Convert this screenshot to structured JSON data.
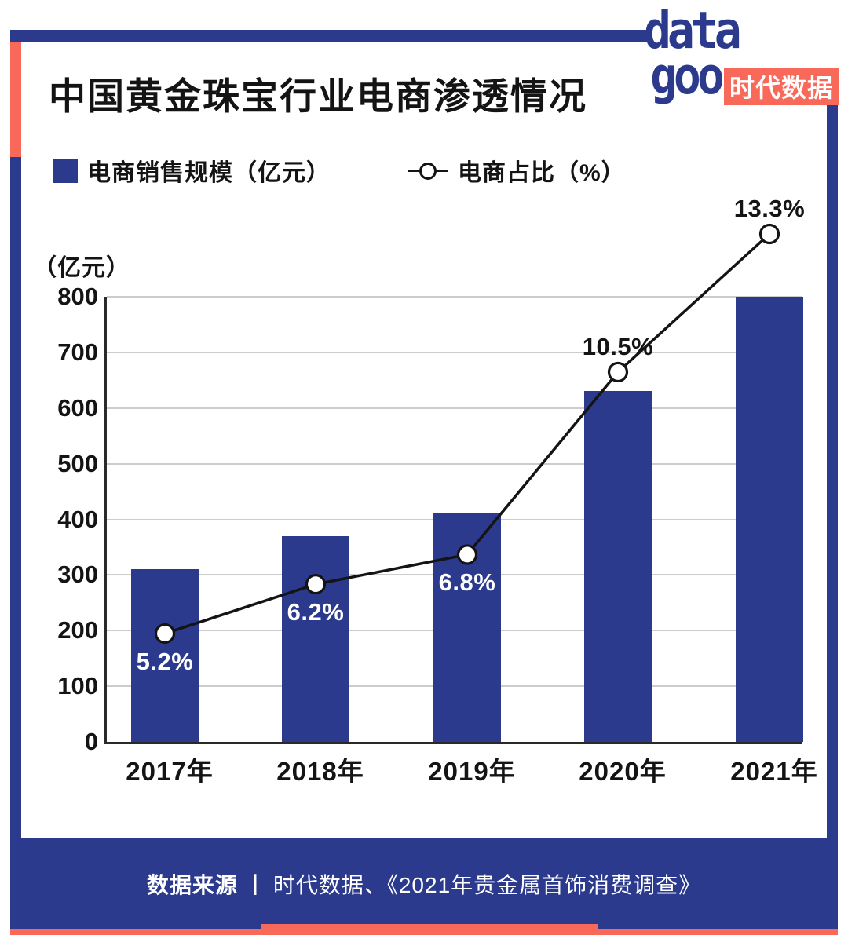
{
  "header": {
    "title": "中国黄金珠宝行业电商渗透情况"
  },
  "logo": {
    "word_top": "data",
    "word_bottom": "goo",
    "badge": "时代数据"
  },
  "legend": {
    "bar_label": "电商销售规模（亿元）",
    "line_label": "电商占比（%）"
  },
  "chart_data": {
    "type": "bar",
    "title": "中国黄金珠宝行业电商渗透情况",
    "categories": [
      "2017年",
      "2018年",
      "2019年",
      "2020年",
      "2021年"
    ],
    "series": [
      {
        "name": "电商销售规模（亿元）",
        "type": "bar",
        "values": [
          310,
          370,
          410,
          630,
          800
        ]
      },
      {
        "name": "电商占比（%）",
        "type": "line",
        "values": [
          5.2,
          6.2,
          6.8,
          10.5,
          13.3
        ],
        "point_labels": [
          "5.2%",
          "6.2%",
          "6.8%",
          "10.5%",
          "13.3%"
        ],
        "label_positions": [
          "below",
          "below",
          "below",
          "above",
          "above"
        ]
      }
    ],
    "ylabel": "（亿元）",
    "yticks": [
      0,
      100,
      200,
      300,
      400,
      500,
      600,
      700,
      800
    ],
    "ylim": [
      0,
      800
    ],
    "grid": true,
    "legend_position": "top"
  },
  "footer": {
    "source_label": "数据来源",
    "separator": "丨",
    "source_text": "时代数据、《2021年贵金属首饰消费调查》"
  },
  "colors": {
    "navy": "#2b3a8d",
    "coral": "#f8695a",
    "grid": "#cccccc",
    "axis": "#2a2a2a",
    "text": "#141414",
    "label_on_bar": "#ffffff"
  }
}
